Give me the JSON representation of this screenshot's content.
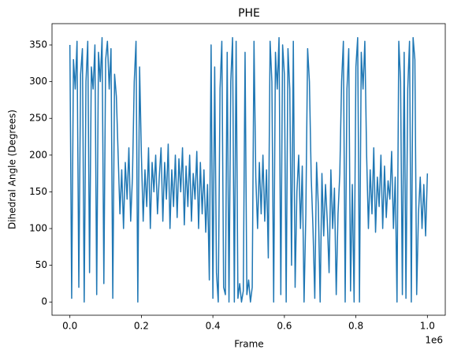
{
  "chart_data": {
    "type": "line",
    "title": "PHE",
    "xlabel": "Frame",
    "ylabel": "Dihedral Angle (Degrees)",
    "x_offset_label": "1e6",
    "color": "#1f77b4",
    "xlim": [
      -50000,
      1050000
    ],
    "ylim": [
      -18,
      379
    ],
    "xticks": [
      {
        "value": 0,
        "label": "0.0"
      },
      {
        "value": 200000,
        "label": "0.2"
      },
      {
        "value": 400000,
        "label": "0.4"
      },
      {
        "value": 600000,
        "label": "0.6"
      },
      {
        "value": 800000,
        "label": "0.8"
      },
      {
        "value": 1000000,
        "label": "1.0"
      }
    ],
    "yticks": [
      0,
      50,
      100,
      150,
      200,
      250,
      300,
      350
    ],
    "x": [
      0,
      5000,
      10000,
      15000,
      20000,
      25000,
      30000,
      35000,
      40000,
      45000,
      50000,
      55000,
      60000,
      65000,
      70000,
      75000,
      80000,
      85000,
      90000,
      95000,
      100000,
      105000,
      110000,
      115000,
      120000,
      125000,
      130000,
      135000,
      140000,
      145000,
      150000,
      155000,
      160000,
      165000,
      170000,
      175000,
      180000,
      185000,
      190000,
      195000,
      200000,
      205000,
      210000,
      215000,
      220000,
      225000,
      230000,
      235000,
      240000,
      245000,
      250000,
      255000,
      260000,
      265000,
      270000,
      275000,
      280000,
      285000,
      290000,
      295000,
      300000,
      305000,
      310000,
      315000,
      320000,
      325000,
      330000,
      335000,
      340000,
      345000,
      350000,
      355000,
      360000,
      365000,
      370000,
      375000,
      380000,
      385000,
      390000,
      395000,
      400000,
      405000,
      410000,
      415000,
      420000,
      425000,
      430000,
      435000,
      440000,
      445000,
      450000,
      455000,
      460000,
      465000,
      470000,
      475000,
      480000,
      485000,
      490000,
      495000,
      500000,
      505000,
      510000,
      515000,
      520000,
      525000,
      530000,
      535000,
      540000,
      545000,
      550000,
      555000,
      560000,
      565000,
      570000,
      575000,
      580000,
      585000,
      590000,
      595000,
      600000,
      605000,
      610000,
      615000,
      620000,
      625000,
      630000,
      635000,
      640000,
      645000,
      650000,
      655000,
      660000,
      665000,
      670000,
      675000,
      680000,
      685000,
      690000,
      695000,
      700000,
      705000,
      710000,
      715000,
      720000,
      725000,
      730000,
      735000,
      740000,
      745000,
      750000,
      755000,
      760000,
      765000,
      770000,
      775000,
      780000,
      785000,
      790000,
      795000,
      800000,
      805000,
      810000,
      815000,
      820000,
      825000,
      830000,
      835000,
      840000,
      845000,
      850000,
      855000,
      860000,
      865000,
      870000,
      875000,
      880000,
      885000,
      890000,
      895000,
      900000,
      905000,
      910000,
      915000,
      920000,
      925000,
      930000,
      935000,
      940000,
      945000,
      950000,
      955000,
      960000,
      965000,
      970000,
      975000,
      980000,
      985000,
      990000,
      995000,
      1000000
    ],
    "values": [
      350,
      5,
      330,
      290,
      355,
      20,
      310,
      345,
      0,
      300,
      355,
      40,
      320,
      290,
      350,
      10,
      340,
      300,
      360,
      25,
      330,
      355,
      290,
      345,
      5,
      310,
      280,
      200,
      120,
      180,
      100,
      190,
      140,
      210,
      110,
      170,
      300,
      355,
      0,
      320,
      200,
      110,
      180,
      130,
      210,
      100,
      190,
      150,
      200,
      120,
      170,
      210,
      110,
      190,
      140,
      215,
      100,
      180,
      130,
      200,
      115,
      195,
      150,
      210,
      105,
      185,
      130,
      200,
      110,
      175,
      140,
      205,
      100,
      190,
      120,
      180,
      95,
      160,
      30,
      350,
      5,
      320,
      40,
      0,
      290,
      355,
      20,
      10,
      340,
      0,
      300,
      360,
      0,
      355,
      5,
      25,
      0,
      15,
      340,
      10,
      30,
      0,
      20,
      355,
      170,
      100,
      190,
      120,
      200,
      110,
      180,
      60,
      355,
      300,
      0,
      340,
      290,
      360,
      10,
      350,
      310,
      0,
      345,
      290,
      50,
      355,
      20,
      150,
      200,
      100,
      185,
      0,
      120,
      345,
      300,
      170,
      100,
      5,
      190,
      130,
      0,
      175,
      90,
      160,
      110,
      40,
      180,
      100,
      155,
      10,
      120,
      175,
      300,
      355,
      0,
      290,
      345,
      15,
      160,
      0,
      320,
      360,
      0,
      340,
      290,
      355,
      200,
      100,
      180,
      120,
      210,
      95,
      170,
      130,
      200,
      100,
      185,
      115,
      165,
      140,
      205,
      100,
      170,
      0,
      355,
      300,
      10,
      340,
      5,
      290,
      355,
      0,
      360,
      330,
      10,
      120,
      170,
      100,
      160,
      90,
      175
    ]
  }
}
